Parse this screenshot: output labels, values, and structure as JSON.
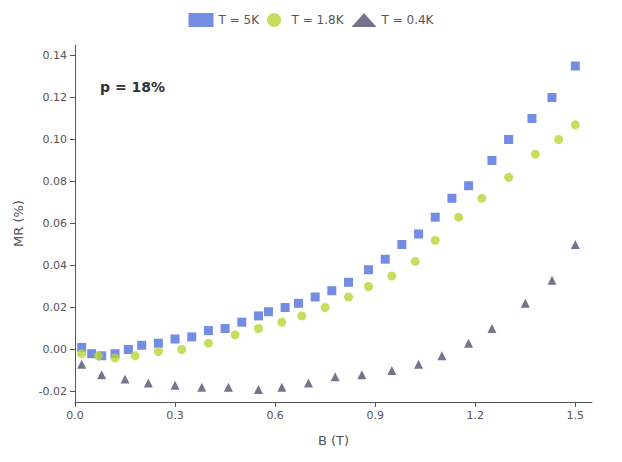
{
  "chart_data": {
    "type": "scatter",
    "title": "",
    "xlabel": "B (T)",
    "ylabel": "MR (%)",
    "annotations": [
      "p = 18%"
    ],
    "xlim": [
      0.0,
      1.55
    ],
    "ylim": [
      -0.025,
      0.145
    ],
    "xticks": [
      {
        "value": 0.0,
        "label": "0.0"
      },
      0.3,
      0.6,
      0.9,
      1.2,
      1.5
    ],
    "yticks": [
      -0.02,
      {
        "value": 0.0,
        "label": "0.00"
      },
      0.02,
      0.04,
      0.06,
      0.08,
      {
        "value": 0.1,
        "label": "0.10"
      },
      0.12,
      0.14
    ],
    "grid": false,
    "legend": "top",
    "series": [
      {
        "name": "T = 5K",
        "marker": "square",
        "x": [
          0.02,
          0.05,
          0.08,
          0.12,
          0.16,
          0.2,
          0.25,
          0.3,
          0.35,
          0.4,
          0.45,
          0.5,
          0.55,
          0.58,
          0.63,
          0.67,
          0.72,
          0.77,
          0.82,
          0.88,
          0.93,
          0.98,
          1.03,
          1.08,
          1.13,
          1.18,
          1.25,
          1.3,
          1.37,
          1.43,
          1.5
        ],
        "values": [
          0.001,
          -0.002,
          -0.003,
          -0.002,
          0.0,
          0.002,
          0.003,
          0.005,
          0.006,
          0.009,
          0.01,
          0.013,
          0.016,
          0.018,
          0.02,
          0.022,
          0.025,
          0.028,
          0.032,
          0.038,
          0.043,
          0.05,
          0.055,
          0.063,
          0.072,
          0.078,
          0.09,
          0.1,
          0.11,
          0.12,
          0.135
        ]
      },
      {
        "name": "T = 1.8K",
        "marker": "circle",
        "x": [
          0.02,
          0.07,
          0.12,
          0.18,
          0.25,
          0.32,
          0.4,
          0.48,
          0.55,
          0.62,
          0.68,
          0.75,
          0.82,
          0.88,
          0.95,
          1.02,
          1.08,
          1.15,
          1.22,
          1.3,
          1.38,
          1.45,
          1.5
        ],
        "values": [
          -0.002,
          -0.003,
          -0.004,
          -0.003,
          -0.001,
          0.0,
          0.003,
          0.007,
          0.01,
          0.013,
          0.016,
          0.02,
          0.025,
          0.03,
          0.035,
          0.042,
          0.052,
          0.063,
          0.072,
          0.082,
          0.093,
          0.1,
          0.107
        ]
      },
      {
        "name": "T = 0.4K",
        "marker": "triangle",
        "x": [
          0.02,
          0.08,
          0.15,
          0.22,
          0.3,
          0.38,
          0.46,
          0.55,
          0.62,
          0.7,
          0.78,
          0.86,
          0.95,
          1.03,
          1.1,
          1.18,
          1.25,
          1.35,
          1.43,
          1.5
        ],
        "values": [
          -0.007,
          -0.012,
          -0.014,
          -0.016,
          -0.017,
          -0.018,
          -0.018,
          -0.019,
          -0.018,
          -0.016,
          -0.013,
          -0.012,
          -0.01,
          -0.007,
          -0.003,
          0.003,
          0.01,
          0.022,
          0.033,
          0.05
        ]
      }
    ]
  }
}
